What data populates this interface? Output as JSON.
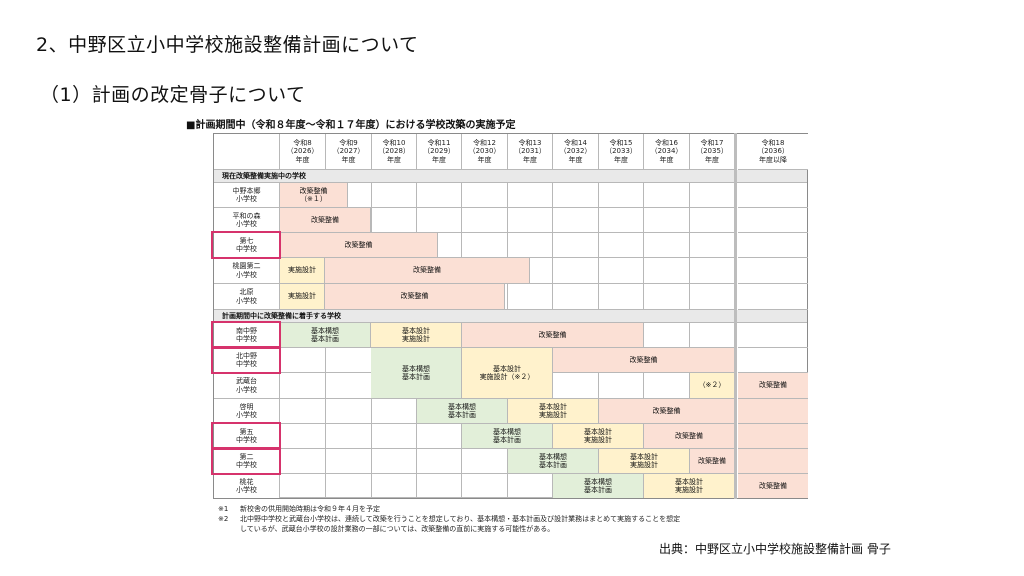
{
  "heading": "2、中野区立小中学校施設整備計画について",
  "subheading": "（1）計画の改定骨子について",
  "table_title": "■計画期間中（令和８年度～令和１７年度）における学校改築の実施予定",
  "years": [
    {
      "era": "令和8",
      "ad": "（2026）",
      "suffix": "年度"
    },
    {
      "era": "令和9",
      "ad": "（2027）",
      "suffix": "年度"
    },
    {
      "era": "令和10",
      "ad": "（2028）",
      "suffix": "年度"
    },
    {
      "era": "令和11",
      "ad": "（2029）",
      "suffix": "年度"
    },
    {
      "era": "令和12",
      "ad": "（2030）",
      "suffix": "年度"
    },
    {
      "era": "令和13",
      "ad": "（2031）",
      "suffix": "年度"
    },
    {
      "era": "令和14",
      "ad": "（2032）",
      "suffix": "年度"
    },
    {
      "era": "令和15",
      "ad": "（2033）",
      "suffix": "年度"
    },
    {
      "era": "令和16",
      "ad": "（2034）",
      "suffix": "年度"
    },
    {
      "era": "令和17",
      "ad": "（2035）",
      "suffix": "年度"
    },
    {
      "era": "令和18",
      "ad": "（2036）",
      "suffix": "年度以降"
    }
  ],
  "section1": "現在改築整備実施中の学校",
  "section2": "計画期間中に改築整備に着手する学校",
  "schools": [
    {
      "name1": "中野本郷",
      "name2": "小学校"
    },
    {
      "name1": "平和の森",
      "name2": "小学校"
    },
    {
      "name1": "第七",
      "name2": "中学校"
    },
    {
      "name1": "桃園第二",
      "name2": "小学校"
    },
    {
      "name1": "北原",
      "name2": "小学校"
    },
    {
      "name1": "南中野",
      "name2": "中学校"
    },
    {
      "name1": "北中野",
      "name2": "中学校"
    },
    {
      "name1": "武蔵台",
      "name2": "小学校"
    },
    {
      "name1": "啓明",
      "name2": "小学校"
    },
    {
      "name1": "第五",
      "name2": "中学校"
    },
    {
      "name1": "第二",
      "name2": "中学校"
    },
    {
      "name1": "桃花",
      "name2": "小学校"
    }
  ],
  "bars": {
    "b0": "改築整備\n（※１）",
    "b1": "改築整備",
    "b2": "改築整備",
    "b3a": "実施設計",
    "b3b": "改築整備",
    "b4a": "実施設計",
    "b4b": "改築整備",
    "b5a": "基本構想\n基本計画",
    "b5b": "基本設計\n実施設計",
    "b5c": "改築整備",
    "b6a": "基本構想\n基本計画",
    "b6b": "基本設計\n実施設計（※２）",
    "b6c": "改築整備",
    "b7a": "（※２）",
    "b7b": "改築整備",
    "b8a": "基本構想\n基本計画",
    "b8b": "基本設計\n実施設計",
    "b8c": "改築整備",
    "b9a": "基本構想\n基本計画",
    "b9b": "基本設計\n実施設計",
    "b9c": "改築整備",
    "b10a": "基本構想\n基本計画",
    "b10b": "基本設計\n実施設計",
    "b10c": "改築整備",
    "b11a": "基本構想\n基本計画",
    "b11b": "基本設計\n実施設計",
    "b11c": "改築整備"
  },
  "notes": [
    {
      "mark": "※1",
      "text": "新校舎の供用開始時期は令和９年４月を予定"
    },
    {
      "mark": "※2",
      "text": "北中野中学校と武蔵台小学校は、連続して改築を行うことを想定しており、基本構想・基本計画及び設計業務はまとめて実施することを想定"
    },
    {
      "mark": "",
      "text": "しているが、武蔵台小学校の設計業務の一部については、改築整備の直前に実施する可能性がある。"
    }
  ],
  "source": "出典：中野区立小中学校施設整備計画 骨子",
  "colors": {
    "green": "#e2efd9",
    "yellow": "#fff2cc",
    "salmon": "#fbe0d5",
    "highlight": "#d6336c",
    "section_bg": "#e9e9e9"
  }
}
